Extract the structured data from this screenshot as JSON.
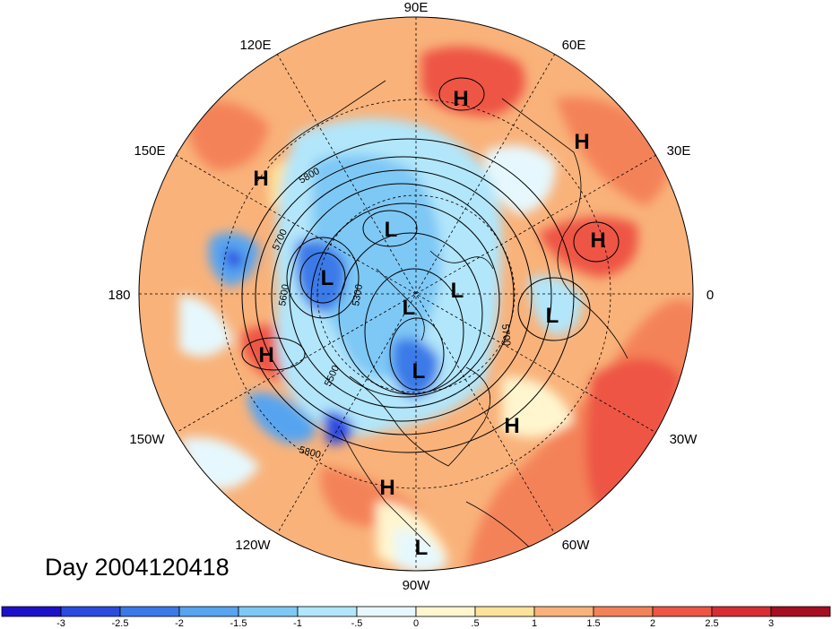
{
  "title": "Day 2004120418",
  "longitude_labels": [
    "90E",
    "60E",
    "30E",
    "0",
    "30W",
    "60W",
    "90W",
    "120W",
    "150W",
    "180",
    "150E",
    "120E"
  ],
  "contour_labels": [
    "5800",
    "5700",
    "5600",
    "5500",
    "5300",
    "5700",
    "5800"
  ],
  "pressure_centers": [
    {
      "type": "H",
      "region": "northeast-asia"
    },
    {
      "type": "H",
      "region": "europe-north"
    },
    {
      "type": "H",
      "region": "europe"
    },
    {
      "type": "H",
      "region": "north-pacific"
    },
    {
      "type": "H",
      "region": "east-pacific"
    },
    {
      "type": "H",
      "region": "atlantic"
    },
    {
      "type": "H",
      "region": "mexico"
    },
    {
      "type": "L",
      "region": "siberia"
    },
    {
      "type": "L",
      "region": "bering"
    },
    {
      "type": "L",
      "region": "arctic"
    },
    {
      "type": "L",
      "region": "canada-north"
    },
    {
      "type": "L",
      "region": "hudson-bay"
    },
    {
      "type": "L",
      "region": "scandinavia"
    },
    {
      "type": "L",
      "region": "central-america"
    }
  ],
  "colorbar": {
    "tick_labels": [
      "-3",
      "-2.5",
      "-2",
      "-1.5",
      "-1",
      "-.5",
      "0",
      ".5",
      "1",
      "1.5",
      "2",
      "2.5",
      "3"
    ],
    "colors": [
      "#1d10c9",
      "#2a4ae0",
      "#3a7ae8",
      "#57a4f0",
      "#7ec8f5",
      "#b2e6fa",
      "#e6f8fd",
      "#fff6cf",
      "#fde29a",
      "#f9b27a",
      "#f48258",
      "#ee5544",
      "#d82c34",
      "#a50f20"
    ]
  }
}
